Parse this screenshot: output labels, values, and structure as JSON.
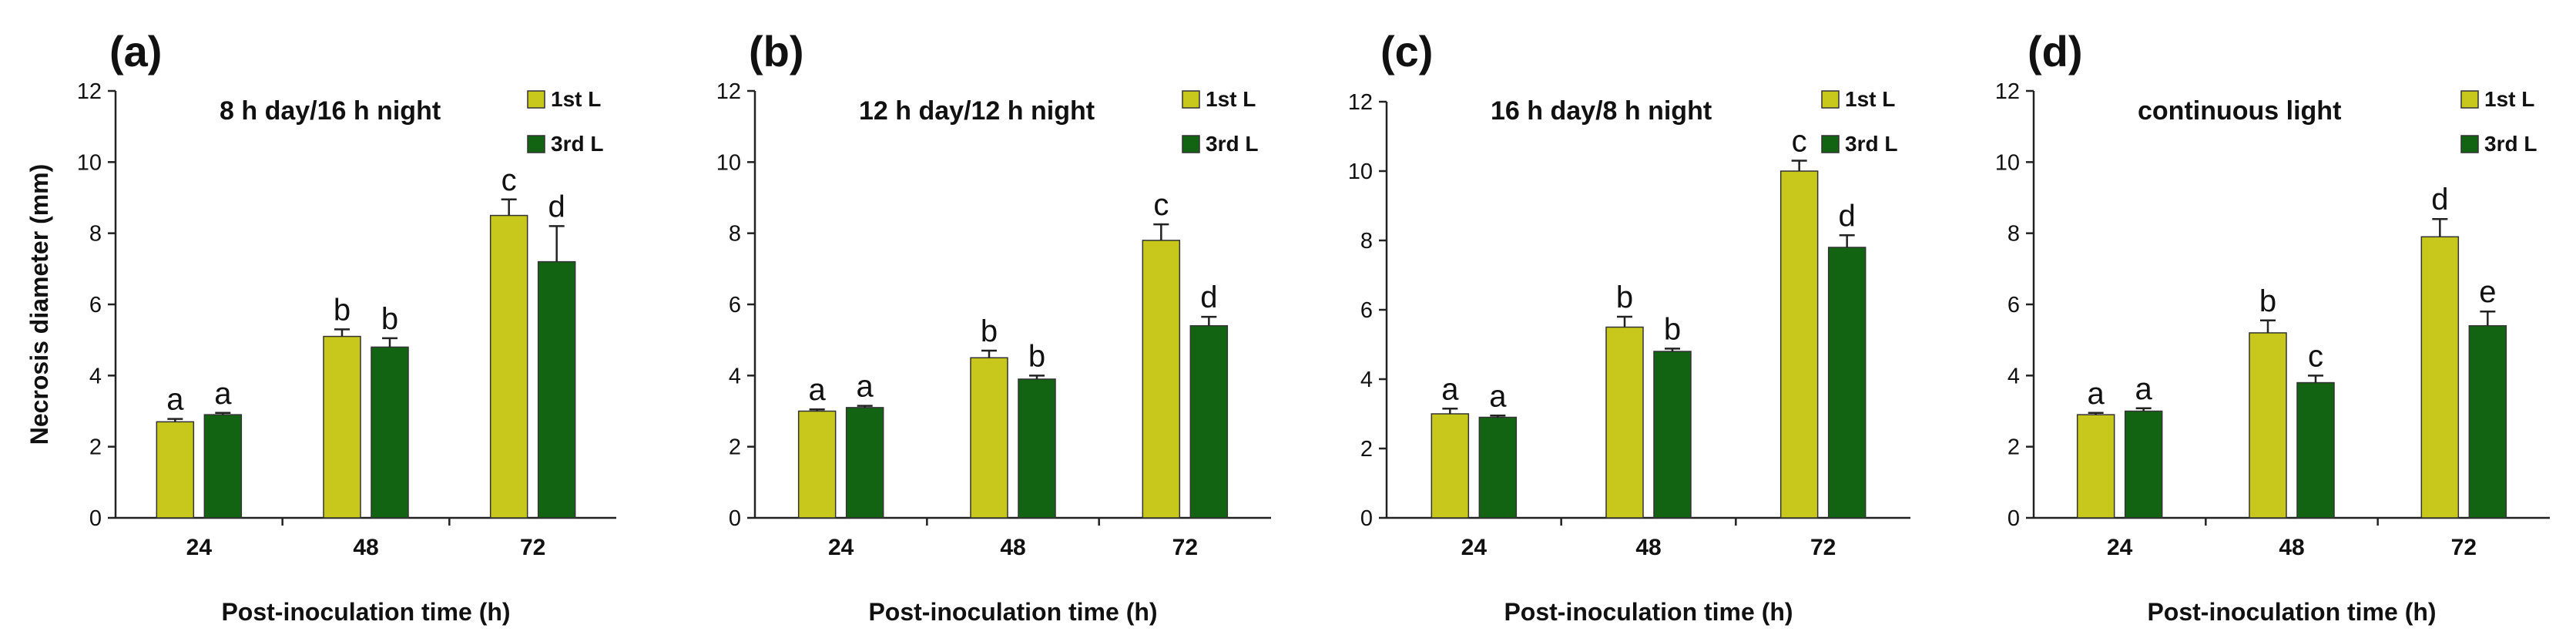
{
  "colors": {
    "first_leaf": "#c8c81c",
    "third_leaf": "#126412",
    "text": "#111111"
  },
  "chart_data": [
    {
      "type": "bar",
      "panel": "(a)",
      "title": "8 h day/16 h night",
      "xlabel": "Post-inoculation time (h)",
      "ylabel": "Necrosis diameter (mm)",
      "ylim": [
        0,
        12
      ],
      "yticks": [
        0,
        2,
        4,
        6,
        8,
        10,
        12
      ],
      "categories": [
        "24",
        "48",
        "72"
      ],
      "legend": [
        "1st L",
        "3rd L"
      ],
      "series": [
        {
          "name": "1st L",
          "values": [
            2.7,
            5.1,
            8.5
          ],
          "errors": [
            0.08,
            0.2,
            0.45
          ],
          "letters": [
            "a",
            "b",
            "c"
          ]
        },
        {
          "name": "3rd L",
          "values": [
            2.9,
            4.8,
            7.2
          ],
          "errors": [
            0.05,
            0.25,
            1.0
          ],
          "letters": [
            "a",
            "b",
            "d"
          ]
        }
      ]
    },
    {
      "type": "bar",
      "panel": "(b)",
      "title": "12 h day/12 h night",
      "xlabel": "Post-inoculation time (h)",
      "ylabel": "",
      "ylim": [
        0,
        12
      ],
      "yticks": [
        0,
        2,
        4,
        6,
        8,
        10,
        12
      ],
      "categories": [
        "24",
        "48",
        "72"
      ],
      "legend": [
        "1st L",
        "3rd L"
      ],
      "series": [
        {
          "name": "1st L",
          "values": [
            3.0,
            4.5,
            7.8
          ],
          "errors": [
            0.05,
            0.2,
            0.45
          ],
          "letters": [
            "a",
            "b",
            "c"
          ]
        },
        {
          "name": "3rd L",
          "values": [
            3.1,
            3.9,
            5.4
          ],
          "errors": [
            0.05,
            0.1,
            0.25
          ],
          "letters": [
            "a",
            "b",
            "d"
          ]
        }
      ]
    },
    {
      "type": "bar",
      "panel": "(c)",
      "title": "16 h day/8 h night",
      "xlabel": "Post-inoculation time (h)",
      "ylabel": "",
      "ylim": [
        0,
        12
      ],
      "yticks": [
        0,
        2,
        4,
        6,
        8,
        10,
        12
      ],
      "categories": [
        "24",
        "48",
        "72"
      ],
      "legend": [
        "1st L",
        "3rd L"
      ],
      "series": [
        {
          "name": "1st L",
          "values": [
            3.0,
            5.5,
            10.0
          ],
          "errors": [
            0.15,
            0.3,
            0.3
          ],
          "letters": [
            "a",
            "b",
            "c"
          ]
        },
        {
          "name": "3rd L",
          "values": [
            2.9,
            4.8,
            7.8
          ],
          "errors": [
            0.05,
            0.08,
            0.35
          ],
          "letters": [
            "a",
            "b",
            "d"
          ]
        }
      ]
    },
    {
      "type": "bar",
      "panel": "(d)",
      "title": "continuous light",
      "xlabel": "Post-inoculation time (h)",
      "ylabel": "",
      "ylim": [
        0,
        12
      ],
      "yticks": [
        0,
        2,
        4,
        6,
        8,
        10,
        12
      ],
      "categories": [
        "24",
        "48",
        "72"
      ],
      "legend": [
        "1st L",
        "3rd L"
      ],
      "series": [
        {
          "name": "1st L",
          "values": [
            2.9,
            5.2,
            7.9
          ],
          "errors": [
            0.05,
            0.35,
            0.5
          ],
          "letters": [
            "a",
            "b",
            "d"
          ]
        },
        {
          "name": "3rd L",
          "values": [
            3.0,
            3.8,
            5.4
          ],
          "errors": [
            0.08,
            0.2,
            0.4
          ],
          "letters": [
            "a",
            "c",
            "e"
          ]
        }
      ]
    }
  ]
}
